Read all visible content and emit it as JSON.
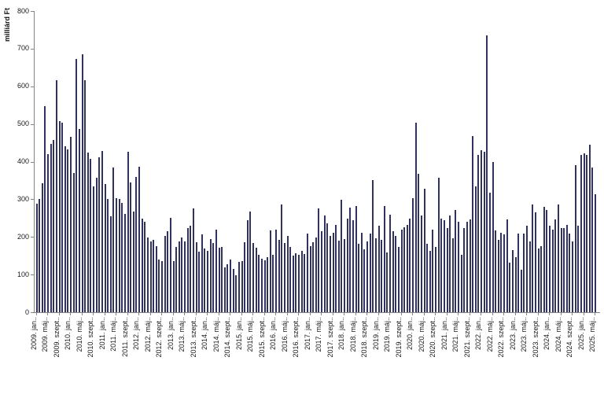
{
  "chart_data": {
    "type": "bar",
    "title": "",
    "xlabel": "",
    "ylabel": "milliárd Ft",
    "ylim": [
      0,
      800
    ],
    "y_ticks": [
      0,
      100,
      200,
      300,
      400,
      500,
      600,
      700,
      800
    ],
    "grid": false,
    "legend": "none",
    "bar_color": "#32325E",
    "axis_color": "#848484",
    "x_start": "2009. jan.",
    "x_end": "2025. máj.",
    "x_tick_every": 4,
    "x_tick_labels": [
      "2009. jan..",
      "2009. máj..",
      "2009. szept..",
      "2010. jan..",
      "2010. máj..",
      "2010. szept..",
      "2011. jan..",
      "2011. máj..",
      "2011. szept..",
      "2012. jan..",
      "2012. máj..",
      "2012. szept..",
      "2013. jan..",
      "2013. máj..",
      "2013. szept..",
      "2014. jan..",
      "2014. máj..",
      "2014. szept..",
      "2015. jan..",
      "2015. máj..",
      "2015. szept..",
      "2016. jan..",
      "2016. máj..",
      "2016. szept..",
      "2017. jan..",
      "2017. máj..",
      "2017. szept..",
      "2018. jan..",
      "2018. máj..",
      "2018. szept..",
      "2019. jan..",
      "2019. máj..",
      "2019. szept..",
      "2020. jan..",
      "2020. máj..",
      "2020. szept..",
      "2021. jan..",
      "2021. máj..",
      "2021. szept..",
      "2022. jan..",
      "2022. máj..",
      "2022. szept..",
      "2023. jan..",
      "2023. máj..",
      "2023. szept..",
      "2024. jan..",
      "2024. máj..",
      "2024. szept..",
      "2025. jan..",
      "2025. máj.."
    ],
    "values": [
      288,
      300,
      342,
      548,
      420,
      447,
      458,
      617,
      507,
      503,
      440,
      432,
      465,
      370,
      672,
      487,
      686,
      617,
      425,
      408,
      335,
      358,
      412,
      428,
      340,
      300,
      255,
      385,
      302,
      300,
      291,
      261,
      426,
      344,
      268,
      360,
      386,
      249,
      240,
      199,
      188,
      192,
      176,
      140,
      136,
      202,
      216,
      251,
      136,
      174,
      188,
      199,
      188,
      223,
      230,
      276,
      185,
      160,
      206,
      170,
      164,
      195,
      183,
      219,
      171,
      174,
      119,
      127,
      140,
      115,
      98,
      133,
      136,
      187,
      244,
      268,
      183,
      171,
      153,
      143,
      137,
      146,
      217,
      153,
      219,
      192,
      287,
      183,
      203,
      174,
      150,
      157,
      153,
      164,
      155,
      209,
      176,
      185,
      199,
      275,
      216,
      256,
      237,
      202,
      212,
      233,
      190,
      299,
      195,
      249,
      278,
      244,
      283,
      181,
      212,
      167,
      188,
      210,
      350,
      196,
      230,
      192,
      282,
      159,
      259,
      215,
      203,
      174,
      219,
      226,
      231,
      249,
      303,
      503,
      367,
      256,
      328,
      181,
      164,
      219,
      174,
      357,
      249,
      244,
      223,
      256,
      196,
      272,
      240,
      153,
      224,
      240,
      247,
      469,
      335,
      417,
      430,
      426,
      735,
      317,
      400,
      217,
      192,
      212,
      206,
      247,
      131,
      166,
      147,
      209,
      112,
      209,
      230,
      188,
      287,
      265,
      169,
      176,
      281,
      272,
      230,
      219,
      247,
      287,
      223,
      224,
      233,
      210,
      188,
      390,
      230,
      417,
      421,
      417,
      445,
      384,
      313
    ]
  }
}
